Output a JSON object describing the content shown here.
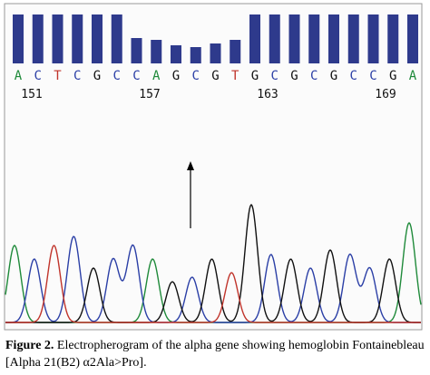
{
  "figure": {
    "bases": [
      "A",
      "C",
      "T",
      "C",
      "G",
      "C",
      "C",
      "A",
      "G",
      "C",
      "G",
      "T",
      "G",
      "C",
      "G",
      "C",
      "G",
      "C",
      "C",
      "G",
      "A"
    ],
    "positions": [
      151,
      157,
      163,
      169
    ],
    "caption_label": "Figure 2.",
    "caption_text": "Electropherogram of the alpha gene showing hemoglobin Fontainebleau [Alpha 21(B2) α2Ala>Pro]."
  }
}
